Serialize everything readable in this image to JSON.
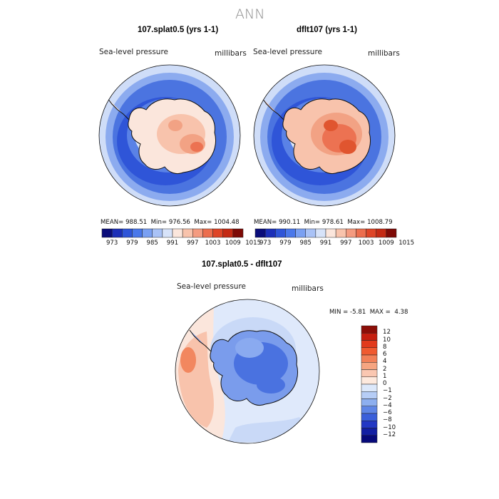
{
  "title": "ANN",
  "panels": {
    "left": {
      "title": "107.splat0.5 (yrs 1-1)",
      "variable": "Sea-level pressure",
      "units": "millibars",
      "stats": {
        "mean_label": "MEAN=",
        "mean": "988.51",
        "min_label": "Min=",
        "min": "976.56",
        "max_label": "Max=",
        "max": "1004.48"
      }
    },
    "right": {
      "title": "dflt107 (yrs 1-1)",
      "variable": "Sea-level pressure",
      "units": "millibars",
      "stats": {
        "mean_label": "MEAN=",
        "mean": "990.11",
        "min_label": "Min=",
        "min": "978.61",
        "max_label": "Max=",
        "max": "1008.79"
      }
    },
    "diff": {
      "title": "107.splat0.5 - dflt107",
      "variable": "Sea-level pressure",
      "units": "millibars",
      "stats": {
        "min_label": "MIN =",
        "min": "-5.81",
        "max_label": "MAX =",
        "max": "4.38"
      }
    }
  },
  "colorbar_top": {
    "ticks": [
      "973",
      "979",
      "985",
      "991",
      "997",
      "1003",
      "1009",
      "1015"
    ],
    "colors": [
      "#0a0d7a",
      "#1c2fb8",
      "#2f55d8",
      "#4a78ea",
      "#7aa0f2",
      "#a9c2f6",
      "#d7e3f9",
      "#fbe6dc",
      "#f8c3ac",
      "#f49b80",
      "#ec6e4e",
      "#de4527",
      "#c42a14",
      "#7e0a06"
    ]
  },
  "colorbar_diff": {
    "labels": [
      "12",
      "10",
      "8",
      "6",
      "4",
      "2",
      "1",
      "0",
      "−1",
      "−2",
      "−4",
      "−6",
      "−8",
      "−10",
      "−12"
    ],
    "colors": [
      "#8c0e08",
      "#c51f10",
      "#e23a1c",
      "#f05a30",
      "#f28058",
      "#f6a581",
      "#fac7b1",
      "#fde9dd",
      "#dce8fa",
      "#b6cdf6",
      "#8dafef",
      "#5f86e6",
      "#3a5fda",
      "#2338c4",
      "#121fa3",
      "#06097a"
    ]
  },
  "map_colors": {
    "ocean_outer": "#e7eefb",
    "ring_light": "#bfd1f5",
    "ring_mid": "#7fa2ec",
    "ring_main": "#4b74e0",
    "ring_deep": "#2f55d8",
    "deepest": "#1f3fc4",
    "ice_edge": "#eaf1fb",
    "land_light": "#fbe6dc",
    "land_warm": "#f8c3ac",
    "land_hot": "#f2a284",
    "land_peak": "#ec7252",
    "land_core": "#e0552f",
    "diff_bg": "#c9d9f7",
    "diff_land": "#4a72e0",
    "diff_warm": "#f8c3ac",
    "diff_hot": "#f2875f",
    "coast": "#111111"
  }
}
